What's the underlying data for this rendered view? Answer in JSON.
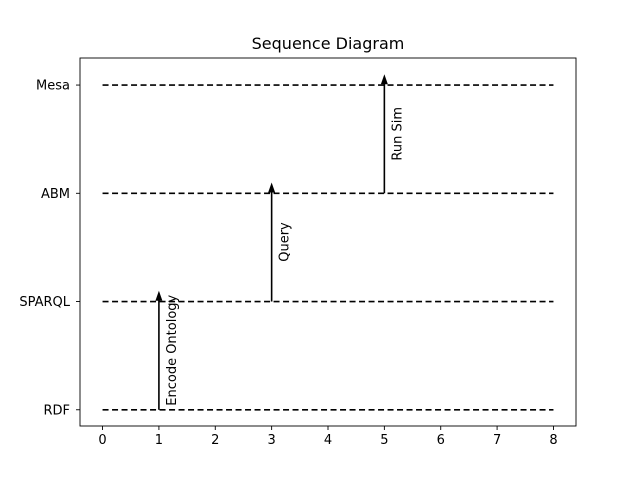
{
  "chart_data": {
    "type": "sequence",
    "title": "Sequence Diagram",
    "xlim": [
      -0.4,
      8.4
    ],
    "ylim": [
      -0.15,
      3.25
    ],
    "x_ticks": [
      0,
      1,
      2,
      3,
      4,
      5,
      6,
      7,
      8
    ],
    "lifelines": [
      {
        "name": "RDF",
        "level": 0
      },
      {
        "name": "SPARQL",
        "level": 1
      },
      {
        "name": "ABM",
        "level": 2
      },
      {
        "name": "Mesa",
        "level": 3
      }
    ],
    "lifeline_extent": [
      0,
      8
    ],
    "lifeline_style": "dashed",
    "messages": [
      {
        "label": "Encode Ontology",
        "x": 1,
        "from": 0,
        "to": 1.1
      },
      {
        "label": "Query",
        "x": 3,
        "from": 1,
        "to": 2.1
      },
      {
        "label": "Run Sim",
        "x": 5,
        "from": 2,
        "to": 3.1
      }
    ],
    "grid": false,
    "colors": {
      "line": "#000000",
      "background": "#ffffff"
    }
  }
}
